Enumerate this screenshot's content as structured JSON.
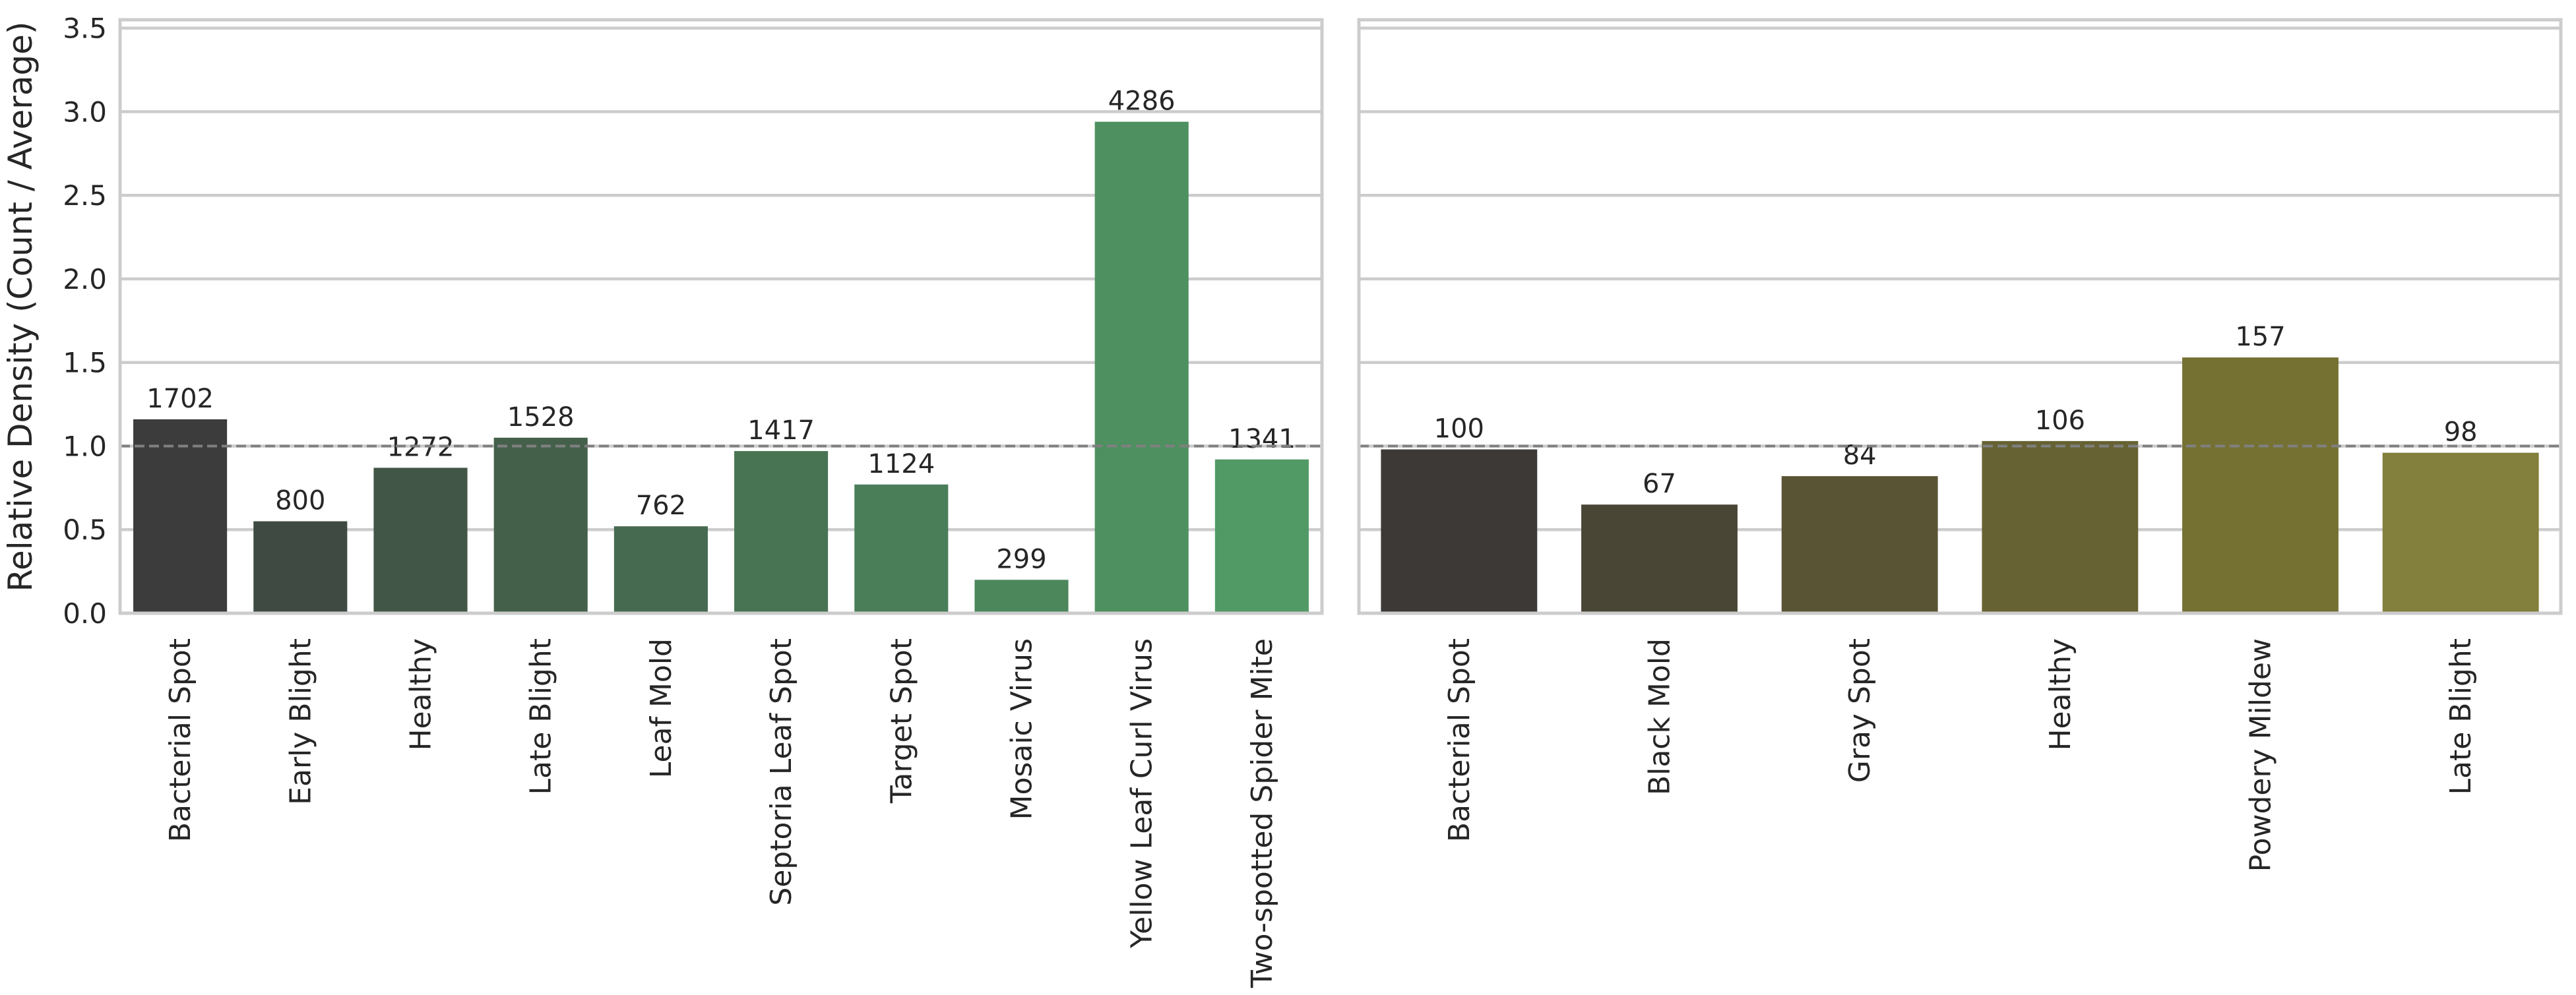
{
  "chart_data": [
    {
      "type": "bar",
      "ylabel": "Relative Density (Count / Average)",
      "ylim": [
        0,
        3.55
      ],
      "yticks": [
        0.0,
        0.5,
        1.0,
        1.5,
        2.0,
        2.5,
        3.0,
        3.5
      ],
      "ytick_labels": [
        "0.0",
        "0.5",
        "1.0",
        "1.5",
        "2.0",
        "2.5",
        "3.0",
        "3.5"
      ],
      "grid": true,
      "reference_line": 1.0,
      "categories": [
        "Bacterial Spot",
        "Early Blight",
        "Healthy",
        "Late Blight",
        "Leaf Mold",
        "Septoria Leaf Spot",
        "Target Spot",
        "Mosaic Virus",
        "Yellow Leaf Curl Virus",
        "Two-spotted Spider Mite"
      ],
      "values": [
        1.16,
        0.55,
        0.87,
        1.05,
        0.52,
        0.97,
        0.77,
        0.2,
        2.94,
        0.92
      ],
      "data_labels": [
        "1702",
        "800",
        "1272",
        "1528",
        "762",
        "1417",
        "1124",
        "299",
        "4286",
        "1341"
      ],
      "colors": [
        "#3c3c3c",
        "#3f4a42",
        "#425647",
        "#44604b",
        "#466a50",
        "#487454",
        "#4a7e58",
        "#4c875c",
        "#4e9060",
        "#519a65"
      ]
    },
    {
      "type": "bar",
      "ylim": [
        0,
        3.55
      ],
      "yticks": [
        0.0,
        0.5,
        1.0,
        1.5,
        2.0,
        2.5,
        3.0,
        3.5
      ],
      "grid": true,
      "reference_line": 1.0,
      "categories": [
        "Bacterial Spot",
        "Black Mold",
        "Gray Spot",
        "Healthy",
        "Powdery Mildew",
        "Late Blight"
      ],
      "values": [
        0.98,
        0.65,
        0.82,
        1.03,
        1.53,
        0.96
      ],
      "data_labels": [
        "100",
        "67",
        "84",
        "106",
        "157",
        "98"
      ],
      "colors": [
        "#3c3937",
        "#4a4635",
        "#595434",
        "#676233",
        "#757133",
        "#837f3c"
      ]
    }
  ]
}
